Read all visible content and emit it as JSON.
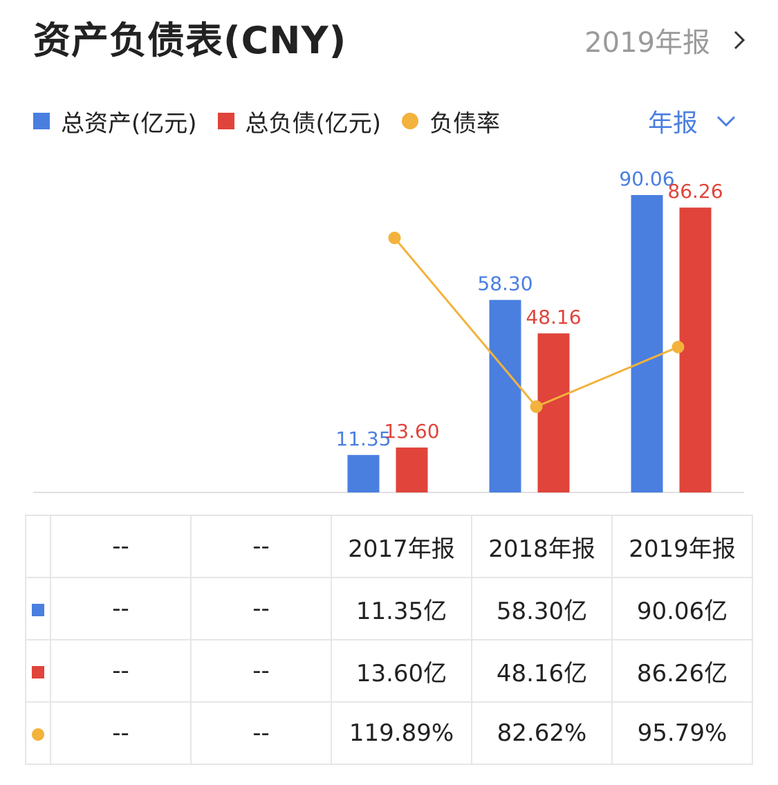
{
  "header": {
    "title": "资产负债表(CNY)",
    "period_link": "2019年报"
  },
  "legend": {
    "items": [
      {
        "label": "总资产(亿元)",
        "color": "#4a7fe0",
        "shape": "square"
      },
      {
        "label": "总负债(亿元)",
        "color": "#e0443b",
        "shape": "square"
      },
      {
        "label": "负债率",
        "color": "#f3b23c",
        "shape": "dot"
      }
    ],
    "period_select": "年报"
  },
  "chart_data": {
    "type": "bar",
    "categories": [
      "2017年报",
      "2018年报",
      "2019年报"
    ],
    "series": [
      {
        "name": "总资产(亿元)",
        "type": "bar",
        "color": "#4a7fe0",
        "values": [
          11.35,
          58.3,
          90.06
        ],
        "labels": [
          "11.35",
          "58.30",
          "90.06"
        ]
      },
      {
        "name": "总负债(亿元)",
        "type": "bar",
        "color": "#e0443b",
        "values": [
          13.6,
          48.16,
          86.26
        ],
        "labels": [
          "13.60",
          "48.16",
          "86.26"
        ]
      },
      {
        "name": "负债率",
        "type": "line",
        "color": "#f3b23c",
        "values": [
          119.89,
          82.62,
          95.79
        ]
      }
    ],
    "empty_slots_before": 2
  },
  "table": {
    "header": [
      "--",
      "--",
      "2017年报",
      "2018年报",
      "2019年报"
    ],
    "rows": [
      {
        "marker": "square",
        "color": "#4a7fe0",
        "cells": [
          "--",
          "--",
          "11.35亿",
          "58.30亿",
          "90.06亿"
        ]
      },
      {
        "marker": "square",
        "color": "#e0443b",
        "cells": [
          "--",
          "--",
          "13.60亿",
          "48.16亿",
          "86.26亿"
        ]
      },
      {
        "marker": "dot",
        "color": "#f3b23c",
        "cells": [
          "--",
          "--",
          "119.89%",
          "82.62%",
          "95.79%"
        ]
      }
    ]
  }
}
